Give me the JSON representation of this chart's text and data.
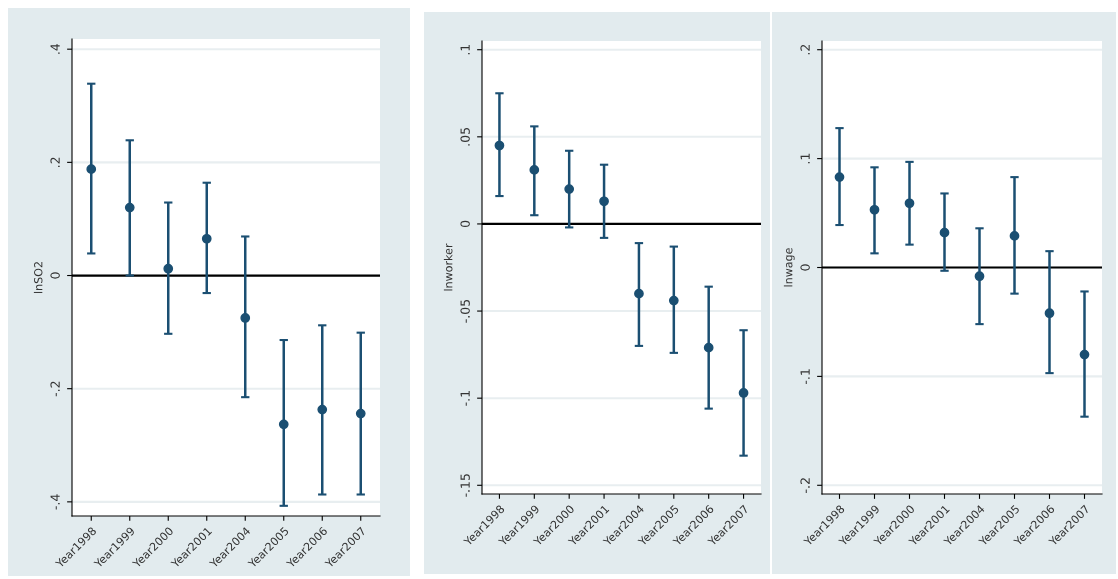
{
  "chart_data": [
    {
      "type": "scatter",
      "ylabel": "lnSO2",
      "categories": [
        "Year1998",
        "Year1999",
        "Year2000",
        "Year2001",
        "Year2004",
        "Year2005",
        "Year2006",
        "Year2007"
      ],
      "series": [
        {
          "color": "#1b4f72",
          "values": [
            0.188,
            0.12,
            0.012,
            0.065,
            -0.075,
            -0.263,
            -0.237,
            -0.244
          ],
          "errors": [
            [
              0.039,
              0.339
            ],
            [
              0.0,
              0.239
            ],
            [
              -0.103,
              0.129
            ],
            [
              -0.031,
              0.164
            ],
            [
              -0.215,
              0.069
            ],
            [
              -0.407,
              -0.114
            ],
            [
              -0.387,
              -0.088
            ],
            [
              -0.387,
              -0.101
            ]
          ]
        }
      ],
      "ylim": [
        -0.425,
        0.418
      ],
      "yticks": [
        {
          "value": -0.4,
          "label": "-.4"
        },
        {
          "value": -0.2,
          "label": "-.2"
        },
        0,
        {
          "value": 0.2,
          "label": ".2"
        },
        {
          "value": 0.4,
          "label": ".4"
        }
      ],
      "ref_lines": [
        {
          "axis": "y",
          "value": 0,
          "color": "#000000"
        }
      ],
      "grid": "y",
      "marker": "circle"
    },
    {
      "type": "scatter",
      "ylabel": "lnworker",
      "categories": [
        "Year1998",
        "Year1999",
        "Year2000",
        "Year2001",
        "Year2004",
        "Year2005",
        "Year2006",
        "Year2007"
      ],
      "series": [
        {
          "color": "#1b4f72",
          "values": [
            0.045,
            0.031,
            0.02,
            0.013,
            -0.04,
            -0.044,
            -0.071,
            -0.097
          ],
          "errors": [
            [
              0.016,
              0.075
            ],
            [
              0.005,
              0.056
            ],
            [
              -0.002,
              0.042
            ],
            [
              -0.008,
              0.034
            ],
            [
              -0.07,
              -0.011
            ],
            [
              -0.074,
              -0.013
            ],
            [
              -0.106,
              -0.036
            ],
            [
              -0.133,
              -0.061
            ]
          ]
        }
      ],
      "ylim": [
        -0.155,
        0.105
      ],
      "yticks": [
        {
          "value": -0.15,
          "label": "-.15"
        },
        {
          "value": -0.1,
          "label": "-.1"
        },
        {
          "value": -0.05,
          "label": "-.05"
        },
        0,
        {
          "value": 0.05,
          "label": ".05"
        },
        {
          "value": 0.1,
          "label": ".1"
        }
      ],
      "ref_lines": [
        {
          "axis": "y",
          "value": 0,
          "color": "#000000"
        }
      ],
      "grid": "y",
      "marker": "circle"
    },
    {
      "type": "scatter",
      "ylabel": "lnwage",
      "categories": [
        "Year1998",
        "Year1999",
        "Year2000",
        "Year2001",
        "Year2004",
        "Year2005",
        "Year2006",
        "Year2007"
      ],
      "series": [
        {
          "color": "#1b4f72",
          "values": [
            0.083,
            0.053,
            0.059,
            0.032,
            -0.008,
            0.029,
            -0.042,
            -0.08
          ],
          "errors": [
            [
              0.039,
              0.128
            ],
            [
              0.013,
              0.092
            ],
            [
              0.021,
              0.097
            ],
            [
              -0.003,
              0.068
            ],
            [
              -0.052,
              0.036
            ],
            [
              -0.024,
              0.083
            ],
            [
              -0.097,
              0.015
            ],
            [
              -0.137,
              -0.022
            ]
          ]
        }
      ],
      "ylim": [
        -0.208,
        0.208
      ],
      "yticks": [
        {
          "value": -0.2,
          "label": "-.2"
        },
        {
          "value": -0.1,
          "label": "-.1"
        },
        0,
        {
          "value": 0.1,
          "label": ".1"
        },
        {
          "value": 0.2,
          "label": ".2"
        }
      ],
      "ref_lines": [
        {
          "axis": "y",
          "value": 0,
          "color": "#000000"
        }
      ],
      "grid": "y",
      "marker": "circle"
    }
  ]
}
